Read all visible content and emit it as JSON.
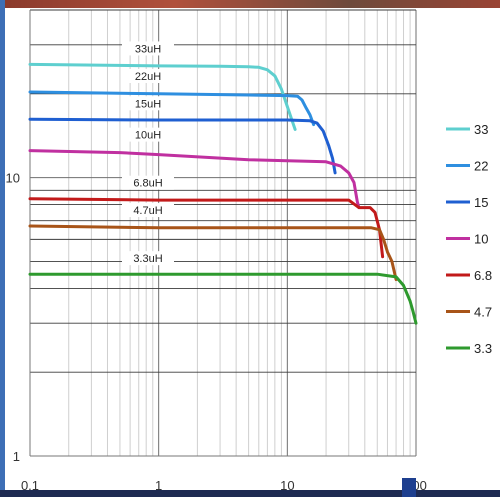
{
  "chart_data": {
    "type": "line",
    "title": "",
    "xlabel": "",
    "ylabel": "",
    "xscale": "log",
    "yscale": "log",
    "xlim": [
      0.1,
      100
    ],
    "ylim": [
      1,
      40
    ],
    "grid": true,
    "legend_position": "right",
    "x_tick_labels": [
      "0.1",
      "1",
      "10",
      "100"
    ],
    "x_tick_values": [
      0.1,
      1,
      10,
      100
    ],
    "y_tick_labels": [
      "1",
      "10"
    ],
    "y_tick_values": [
      1,
      10
    ],
    "series": [
      {
        "name": "33",
        "label": "33uH",
        "color": "#5ecfcf",
        "x": [
          0.1,
          1,
          3,
          5,
          6,
          7,
          8,
          9,
          10,
          11.5
        ],
        "y": [
          25.5,
          25.2,
          25.1,
          25.0,
          24.9,
          24.4,
          23.2,
          20.8,
          18.0,
          14.9
        ]
      },
      {
        "name": "22",
        "label": "22uH",
        "color": "#2e8fe0",
        "x": [
          0.1,
          1,
          5,
          10,
          12,
          13,
          14,
          15,
          16
        ],
        "y": [
          20.3,
          20.0,
          19.8,
          19.7,
          19.6,
          19.0,
          17.8,
          16.8,
          15.5
        ]
      },
      {
        "name": "15",
        "label": "15uH",
        "color": "#1f5fd1",
        "x": [
          0.1,
          1,
          5,
          10,
          15,
          17,
          19,
          21,
          22.5,
          23.5
        ],
        "y": [
          16.2,
          16.1,
          16.1,
          16.1,
          16.0,
          15.7,
          14.7,
          13.0,
          11.7,
          10.4
        ]
      },
      {
        "name": "10",
        "label": "10uH",
        "color": "#c030a0",
        "x": [
          0.1,
          0.5,
          1,
          5,
          10,
          20,
          26,
          30,
          33,
          35,
          36
        ],
        "y": [
          12.5,
          12.3,
          12.1,
          11.6,
          11.5,
          11.4,
          11.0,
          10.4,
          9.6,
          8.2,
          7.8
        ]
      },
      {
        "name": "6.8",
        "label": "6.8uH",
        "color": "#c21a1a",
        "x": [
          0.1,
          1,
          10,
          30,
          36,
          44,
          48,
          52,
          55
        ],
        "y": [
          8.4,
          8.3,
          8.3,
          8.3,
          7.8,
          7.8,
          7.5,
          6.5,
          5.2
        ]
      },
      {
        "name": "4.7",
        "label": "4.7uH",
        "color": "#a85418",
        "x": [
          0.1,
          1,
          10,
          45,
          52,
          56,
          60,
          65,
          70
        ],
        "y": [
          6.7,
          6.6,
          6.6,
          6.6,
          6.5,
          6.0,
          5.4,
          5.0,
          4.3
        ]
      },
      {
        "name": "3.3",
        "label": "3.3uH",
        "color": "#2e9a2e",
        "x": [
          0.1,
          1,
          10,
          50,
          70,
          80,
          90,
          95,
          100
        ],
        "y": [
          4.5,
          4.5,
          4.5,
          4.5,
          4.4,
          4.1,
          3.6,
          3.3,
          3.0
        ]
      }
    ]
  }
}
